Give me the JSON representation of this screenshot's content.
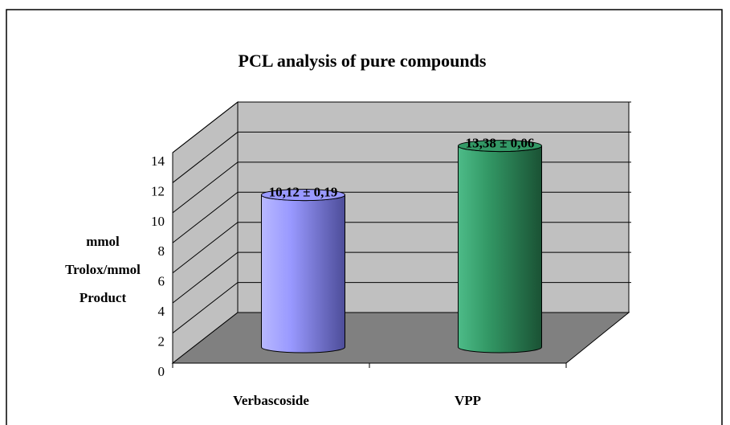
{
  "chart_data": {
    "type": "bar",
    "title": "PCL analysis of pure compounds",
    "ylabel": [
      "mmol",
      "Trolox/mmol",
      "Product"
    ],
    "categories": [
      "Verbascoside",
      "VPP"
    ],
    "series": [
      {
        "name": null,
        "colors": [
          "#9999ff",
          "#339966"
        ],
        "values": [
          10.12,
          13.38
        ]
      }
    ],
    "value_labels": [
      "10,12 ± 0,19",
      "13,38 ± 0,06"
    ],
    "ylim": [
      0,
      14
    ],
    "yticks": [
      0,
      2,
      4,
      6,
      8,
      10,
      12,
      14
    ],
    "grid": true
  }
}
